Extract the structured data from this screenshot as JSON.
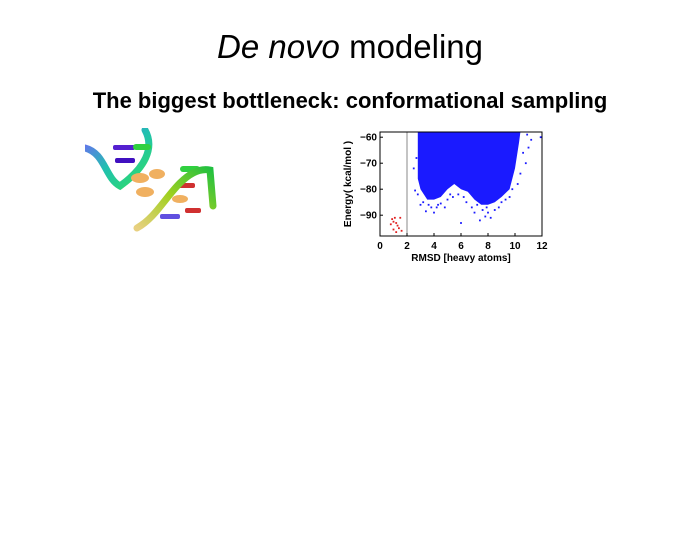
{
  "slide": {
    "title_italic": "De novo",
    "title_rest": " modeling",
    "subtitle": "The biggest bottleneck: conformational sampling"
  },
  "image": {
    "icon": "protein-ribbon-structure"
  },
  "chart_data": {
    "type": "scatter",
    "xlabel": "RMSD [heavy atoms]",
    "ylabel": "Energy( kcal/mol )",
    "xlim": [
      0,
      12
    ],
    "ylim": [
      -98,
      -58
    ],
    "xticks": [
      "0",
      "2",
      "4",
      "6",
      "8",
      "10",
      "12"
    ],
    "yticks": [
      "-60",
      "-70",
      "-80",
      "-90"
    ],
    "grid": false,
    "reference_line_x": 2,
    "colors": {
      "decoys": "#1a1aff",
      "native_like": "#e02020",
      "reference_line": "#888888"
    },
    "series": [
      {
        "color": "#1a1aff",
        "dense_region_boundary": [
          [
            2.8,
            -58
          ],
          [
            10.4,
            -58
          ],
          [
            10.3,
            -62
          ],
          [
            10,
            -72
          ],
          [
            9.6,
            -80
          ],
          [
            9,
            -83
          ],
          [
            8.5,
            -85
          ],
          [
            8,
            -86
          ],
          [
            7.5,
            -86
          ],
          [
            7,
            -84
          ],
          [
            6.5,
            -81
          ],
          [
            6,
            -80
          ],
          [
            5.5,
            -78
          ],
          [
            5,
            -80
          ],
          [
            4.5,
            -83
          ],
          [
            4,
            -84
          ],
          [
            3.5,
            -84
          ],
          [
            3,
            -80
          ],
          [
            2.8,
            -76
          ]
        ],
        "points": [
          [
            2.6,
            -80.5
          ],
          [
            2.8,
            -82
          ],
          [
            3.0,
            -86
          ],
          [
            3.2,
            -85
          ],
          [
            3.4,
            -88.5
          ],
          [
            3.6,
            -86
          ],
          [
            3.8,
            -87
          ],
          [
            4.0,
            -89
          ],
          [
            4.2,
            -87
          ],
          [
            4.5,
            -85.5
          ],
          [
            4.8,
            -87
          ],
          [
            5.0,
            -84
          ],
          [
            5.4,
            -83
          ],
          [
            5.8,
            -82
          ],
          [
            6.0,
            -93
          ],
          [
            6.4,
            -85
          ],
          [
            6.8,
            -87
          ],
          [
            7.0,
            -89
          ],
          [
            7.2,
            -86
          ],
          [
            7.4,
            -92
          ],
          [
            7.6,
            -88
          ],
          [
            7.8,
            -90.5
          ],
          [
            8.0,
            -89
          ],
          [
            8.2,
            -91
          ],
          [
            8.5,
            -88
          ],
          [
            8.8,
            -87
          ],
          [
            9.0,
            -85
          ],
          [
            9.3,
            -84
          ],
          [
            9.6,
            -83
          ],
          [
            9.8,
            -80
          ],
          [
            10.2,
            -78
          ],
          [
            10.4,
            -74
          ],
          [
            10.6,
            -66
          ],
          [
            10.8,
            -70
          ],
          [
            11.0,
            -64
          ],
          [
            11.2,
            -61
          ],
          [
            10.9,
            -59
          ],
          [
            11.9,
            -60
          ],
          [
            2.7,
            -68
          ],
          [
            2.5,
            -72
          ],
          [
            3.1,
            -78
          ],
          [
            8.3,
            -84
          ],
          [
            6.2,
            -83
          ],
          [
            4.3,
            -86
          ],
          [
            5.2,
            -82
          ],
          [
            7.9,
            -87
          ]
        ]
      },
      {
        "color": "#e02020",
        "points": [
          [
            0.9,
            -91.5
          ],
          [
            1.0,
            -92.5
          ],
          [
            1.1,
            -91
          ],
          [
            1.2,
            -93
          ],
          [
            1.3,
            -94
          ],
          [
            1.5,
            -91
          ],
          [
            0.8,
            -93.5
          ],
          [
            1.0,
            -95.5
          ],
          [
            1.4,
            -95
          ],
          [
            1.6,
            -96
          ],
          [
            1.2,
            -96.5
          ]
        ]
      }
    ]
  }
}
